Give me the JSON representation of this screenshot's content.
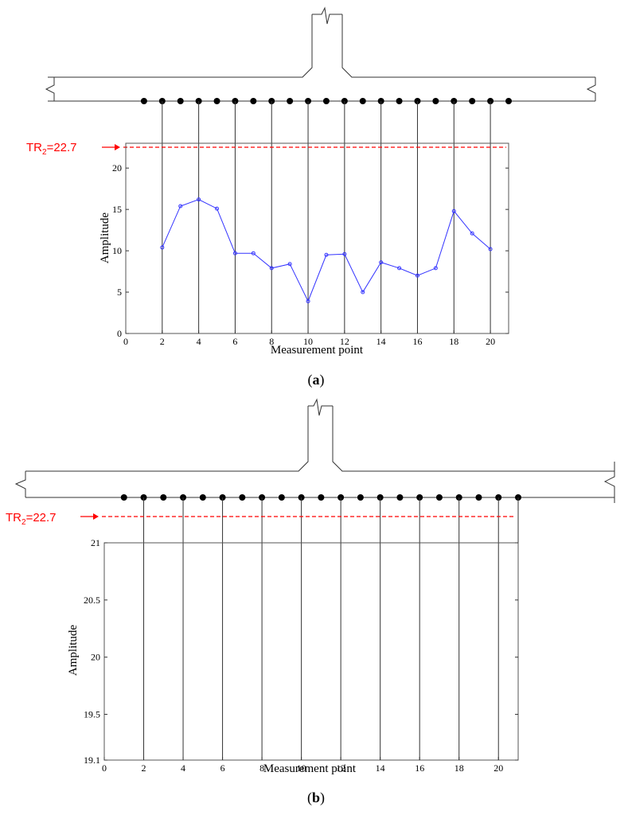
{
  "threshold_label": {
    "base": "TR",
    "sub": "2",
    "rest": "=22.7"
  },
  "threshold_color": "#ff0000",
  "series_color": "#3333ff",
  "chart_data": [
    {
      "panel": "a",
      "caption": "a",
      "type": "line",
      "xlabel": "Measurement point",
      "ylabel": "Amplitude",
      "xlim": [
        0,
        21
      ],
      "ylim": [
        0,
        23
      ],
      "x_ticks": [
        0,
        2,
        4,
        6,
        8,
        10,
        12,
        14,
        16,
        18,
        20
      ],
      "y_ticks": [
        0,
        5,
        10,
        15,
        20
      ],
      "threshold": 22.7,
      "x": [
        2,
        3,
        4,
        5,
        6,
        7,
        8,
        9,
        10,
        11,
        12,
        13,
        14,
        15,
        16,
        17,
        18,
        19,
        20
      ],
      "y": [
        10.4,
        15.4,
        16.2,
        15.1,
        9.7,
        9.7,
        7.9,
        8.4,
        3.9,
        9.5,
        9.6,
        5.0,
        8.6,
        7.9,
        7.0,
        7.9,
        14.8,
        12.1,
        10.2
      ],
      "sensors": [
        1,
        2,
        3,
        4,
        5,
        6,
        7,
        8,
        9,
        10,
        11,
        12,
        13,
        14,
        15,
        16,
        17,
        18,
        19,
        20,
        21
      ],
      "verticals": [
        2,
        4,
        6,
        8,
        10,
        12,
        14,
        16,
        18,
        20
      ]
    },
    {
      "panel": "b",
      "caption": "b",
      "type": "line",
      "xlabel": "Measurement point",
      "ylabel": "Amplitude",
      "xlim": [
        0,
        21
      ],
      "ylim": [
        19.1,
        21
      ],
      "x_ticks": [
        0,
        2,
        4,
        6,
        8,
        10,
        12,
        14,
        16,
        18,
        20
      ],
      "y_ticks": [
        19.1,
        19.5,
        20,
        20.5,
        21
      ],
      "threshold": 22.7,
      "x": [],
      "y": [],
      "sensors": [
        1,
        2,
        3,
        4,
        5,
        6,
        7,
        8,
        9,
        10,
        11,
        12,
        13,
        14,
        15,
        16,
        17,
        18,
        19,
        20,
        21
      ],
      "verticals": [
        2,
        4,
        6,
        8,
        10,
        12,
        14,
        16,
        18,
        20,
        21
      ]
    }
  ]
}
